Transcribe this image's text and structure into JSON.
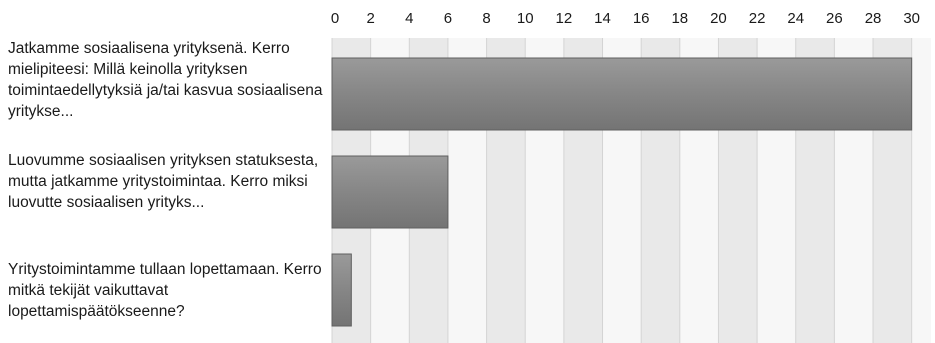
{
  "chart_data": {
    "type": "bar",
    "orientation": "horizontal",
    "title": "",
    "xlabel": "",
    "ylabel": "",
    "categories": [
      "Jatkamme sosiaalisena yrityksenä. Kerro mielipiteesi: Millä keinolla yrityksen toimintaedellytyksiä ja/tai kasvua sosiaalisena yritykse...",
      "Luovumme sosiaalisen yrityksen statuksesta, mutta jatkamme yritystoimintaa. Kerro miksi luovutte sosiaalisen yrityks...",
      "Yritystoimintamme tullaan lopettamaan. Kerro mitkä tekijät vaikuttavat lopettamispäätökseenne?"
    ],
    "values": [
      30,
      6,
      1
    ],
    "xlim": [
      0,
      31
    ],
    "ticks": [
      0,
      2,
      4,
      6,
      8,
      10,
      12,
      14,
      16,
      18,
      20,
      22,
      24,
      26,
      28,
      30
    ],
    "tick_axis_position": "top",
    "grid": true,
    "legend": "none",
    "colors": {
      "bar_fill": "#868686",
      "bar_stroke": "#5f5f5f",
      "band_light": "#f7f7f7",
      "band_dark": "#e9e9e9",
      "grid": "#d4d4d4",
      "text": "#1a1a1a"
    }
  }
}
